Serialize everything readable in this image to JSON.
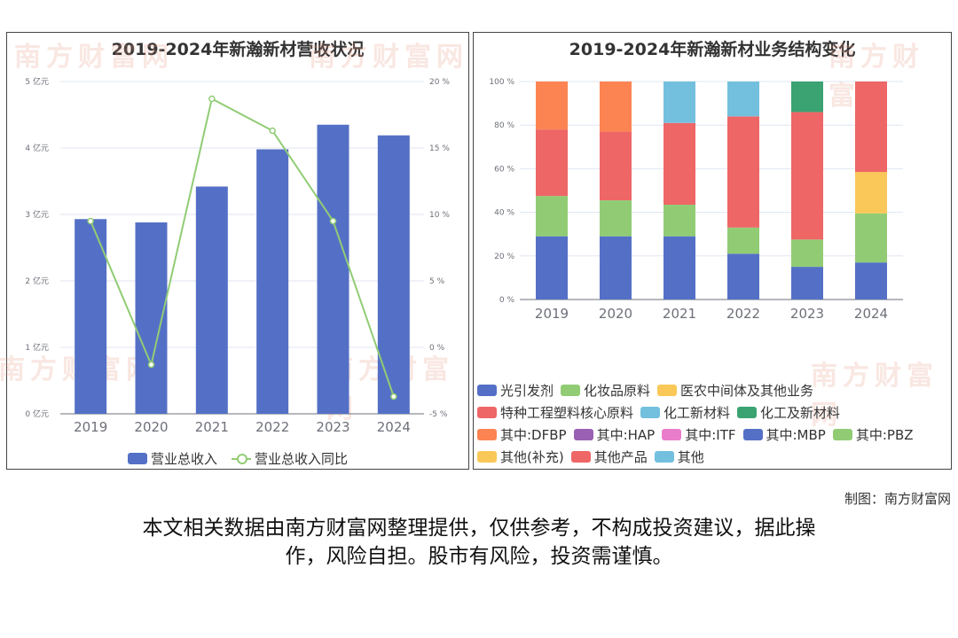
{
  "left_chart": {
    "title": "2019-2024年新瀚新材营收状况",
    "legend": [
      {
        "name": "营业总收入",
        "color": "#5470c6",
        "marker": "bar"
      },
      {
        "name": "营业总收入同比",
        "color": "#91cc75",
        "marker": "line"
      }
    ]
  },
  "right_chart": {
    "title": "2019-2024年新瀚新材业务结构变化",
    "legend_rows": [
      [
        {
          "name": "光引发剂",
          "color": "#5470c6"
        },
        {
          "name": "化妆品原料",
          "color": "#91cc75"
        },
        {
          "name": "医农中间体及其他业务",
          "color": "#fac858"
        }
      ],
      [
        {
          "name": "特种工程塑料核心原料",
          "color": "#ee6666"
        },
        {
          "name": "化工新材料",
          "color": "#73c0de"
        },
        {
          "name": "化工及新材料",
          "color": "#3ba272"
        }
      ],
      [
        {
          "name": "其中:DFBP",
          "color": "#fc8452"
        },
        {
          "name": "其中:HAP",
          "color": "#9a60b4"
        },
        {
          "name": "其中:ITF",
          "color": "#ea7ccc"
        },
        {
          "name": "其中:MBP",
          "color": "#5470c6"
        },
        {
          "name": "其中:PBZ",
          "color": "#91cc75"
        }
      ],
      [
        {
          "name": "其他(补充)",
          "color": "#fac858"
        },
        {
          "name": "其他产品",
          "color": "#ee6666"
        },
        {
          "name": "其他",
          "color": "#73c0de"
        }
      ]
    ]
  },
  "credit": "制图：南方财富网",
  "disclaimer_line1": "本文相关数据由南方财富网整理提供，仅供参考，不构成投资建议，据此操",
  "disclaimer_line2": "作，风险自担。股市有风险，投资需谨慎。",
  "watermark": "南方财富网",
  "chart_data": [
    {
      "type": "bar",
      "title": "2019-2024年新瀚新材营收状况",
      "categories": [
        "2019",
        "2020",
        "2021",
        "2022",
        "2023",
        "2024"
      ],
      "y_left": {
        "ticks": [
          "0 亿元",
          "1 亿元",
          "2 亿元",
          "3 亿元",
          "4 亿元",
          "5 亿元"
        ],
        "ylim": [
          0,
          5
        ]
      },
      "y_right": {
        "ticks": [
          "-5 %",
          "0 %",
          "5 %",
          "10 %",
          "15 %",
          "20 %"
        ],
        "ylim": [
          -5,
          20
        ]
      },
      "series": [
        {
          "name": "营业总收入",
          "type": "bar",
          "axis": "left",
          "color": "#5470c6",
          "values": [
            2.93,
            2.88,
            3.42,
            3.98,
            4.35,
            4.19
          ]
        },
        {
          "name": "营业总收入同比",
          "type": "line",
          "axis": "right",
          "color": "#91cc75",
          "values": [
            9.5,
            -1.3,
            18.7,
            16.3,
            9.5,
            -3.7
          ]
        }
      ],
      "grid": true,
      "legend_position": "bottom"
    },
    {
      "type": "bar",
      "stacked": true,
      "title": "2019-2024年新瀚新材业务结构变化",
      "categories": [
        "2019",
        "2020",
        "2021",
        "2022",
        "2023",
        "2024"
      ],
      "y_ticks": [
        "0 %",
        "20 %",
        "40 %",
        "60 %",
        "80 %",
        "100 %"
      ],
      "ylim": [
        0,
        100
      ],
      "series": [
        {
          "name": "光引发剂",
          "color": "#5470c6",
          "values": [
            29,
            29,
            29,
            21,
            15,
            17
          ]
        },
        {
          "name": "化妆品原料",
          "color": "#91cc75",
          "values": [
            18.5,
            16.5,
            14.5,
            12,
            12.5,
            22.5
          ]
        },
        {
          "name": "医农中间体及其他业务",
          "color": "#fac858",
          "values": [
            0,
            0,
            0,
            0,
            0,
            19
          ]
        },
        {
          "name": "特种工程塑料核心原料",
          "color": "#ee6666",
          "values": [
            30.5,
            31.5,
            37.5,
            51,
            58.5,
            41.5
          ]
        },
        {
          "name": "化工新材料",
          "color": "#73c0de",
          "values": [
            0,
            0,
            19,
            16,
            0,
            0
          ]
        },
        {
          "name": "化工及新材料",
          "color": "#3ba272",
          "values": [
            0,
            0,
            0,
            0,
            14,
            0
          ]
        },
        {
          "name": "其中:DFBP",
          "color": "#fc8452",
          "values": [
            22,
            23,
            0,
            0,
            0,
            0
          ]
        }
      ],
      "grid": true,
      "legend_position": "bottom"
    }
  ]
}
